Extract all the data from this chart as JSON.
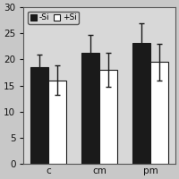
{
  "categories": [
    "c",
    "cm",
    "pm"
  ],
  "minus_si": [
    18.5,
    21.2,
    23.2
  ],
  "plus_si": [
    16.0,
    18.0,
    19.5
  ],
  "minus_si_err": [
    2.5,
    3.5,
    3.8
  ],
  "plus_si_err": [
    2.8,
    3.2,
    3.5
  ],
  "bar_color_minus": "#1a1a1a",
  "bar_color_plus": "#ffffff",
  "bar_edgecolor": "#1a1a1a",
  "legend_labels": [
    "-Si",
    "+Si"
  ],
  "ylim": [
    0,
    30
  ],
  "yticks": [
    0,
    5,
    10,
    15,
    20,
    25,
    30
  ],
  "bar_width": 0.35,
  "figsize": [
    2.0,
    2.0
  ],
  "dpi": 100,
  "bg_color": "#d8d8d8",
  "fig_bg_color": "#c8c8c8"
}
